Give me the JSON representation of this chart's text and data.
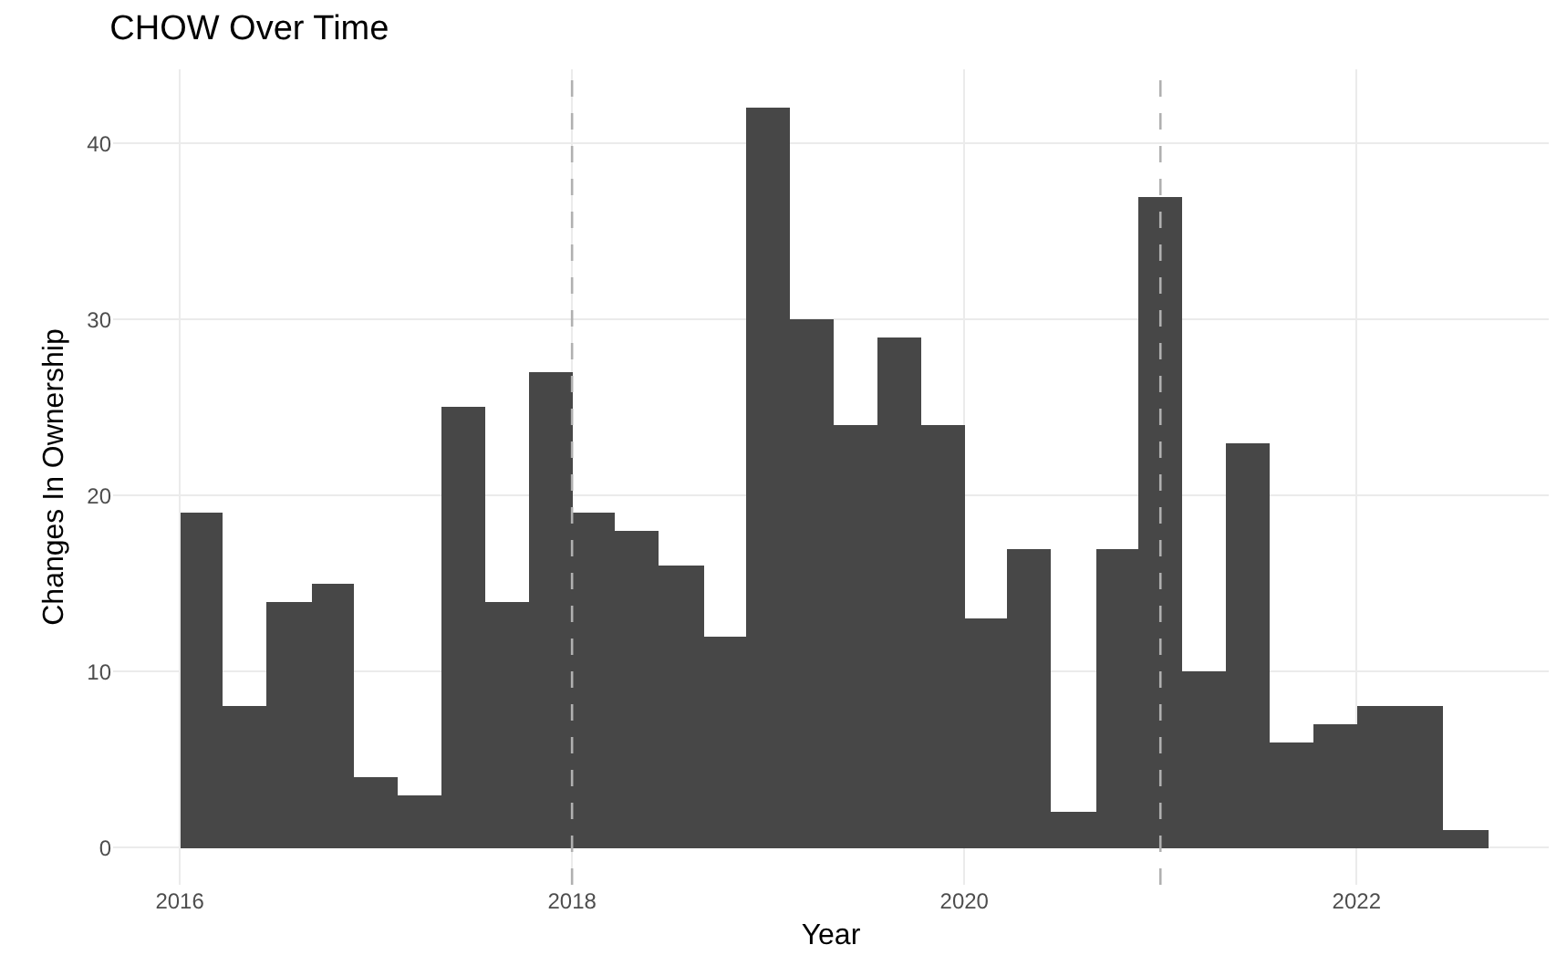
{
  "chart_data": {
    "type": "histogram",
    "title": "CHOW Over Time",
    "xlabel": "Year",
    "ylabel": "Changes In Ownership",
    "bins": [
      2016,
      2016.22,
      2016.44,
      2016.67,
      2016.89,
      2017.11,
      2017.33,
      2017.56,
      2017.78,
      2018.0,
      2018.22,
      2018.44,
      2018.67,
      2018.89,
      2019.11,
      2019.33,
      2019.56,
      2019.78,
      2020.0,
      2020.22,
      2020.44,
      2020.67,
      2020.89,
      2021.11,
      2021.33,
      2021.56,
      2021.78,
      2022.0,
      2022.22,
      2022.44,
      2022.67
    ],
    "values": [
      19,
      8,
      14,
      15,
      4,
      3,
      25,
      14,
      27,
      19,
      18,
      16,
      12,
      42,
      30,
      24,
      29,
      24,
      13,
      17,
      2,
      17,
      37,
      10,
      23,
      6,
      7,
      8,
      8,
      1
    ],
    "color": "#474747",
    "xlim": [
      2015.66,
      2022.98
    ],
    "xticks": [
      2016,
      2018,
      2020,
      2022
    ],
    "ylim": [
      -2.1,
      44.2
    ],
    "yticks": [
      0,
      10,
      20,
      30,
      40
    ],
    "grid": true,
    "ref_lines": [
      {
        "axis": "x",
        "value": 2018,
        "color": "#b0b0b0",
        "line_style": "dashed"
      },
      {
        "axis": "x",
        "value": 2021,
        "color": "#b0b0b0",
        "line_style": "dashed"
      }
    ]
  }
}
